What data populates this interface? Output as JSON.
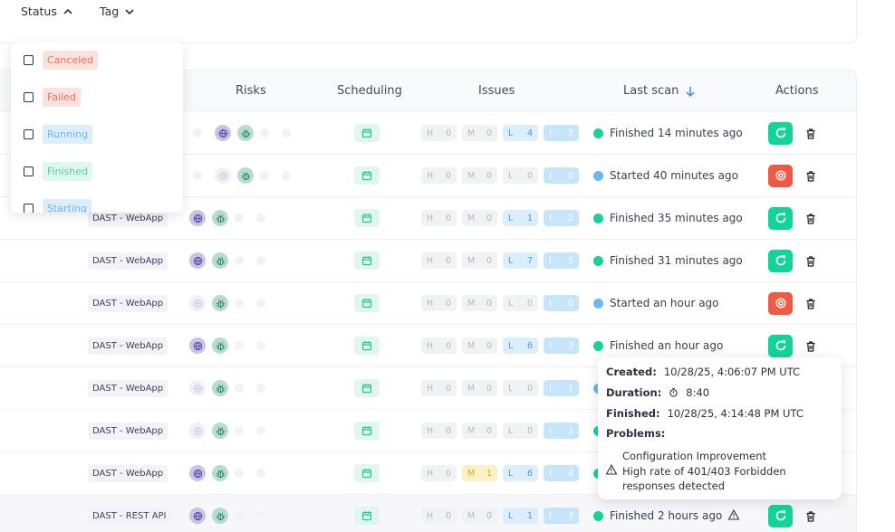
{
  "filters": {
    "status_label": "Status",
    "tag_label": "Tag"
  },
  "status_dropdown": {
    "options": [
      {
        "label": "Canceled"
      },
      {
        "label": "Failed"
      },
      {
        "label": "Running"
      },
      {
        "label": "Finished"
      },
      {
        "label": "Starting"
      }
    ]
  },
  "table": {
    "headers": {
      "risks": "Risks",
      "scheduling": "Scheduling",
      "issues": "Issues",
      "last_scan": "Last scan",
      "actions": "Actions"
    },
    "issue_letters": {
      "h": "H",
      "m": "M",
      "l": "L",
      "i": "I"
    },
    "rows": [
      {
        "type": "",
        "risks_active": true,
        "h": "0",
        "m": "0",
        "l": "4",
        "i": "2",
        "l_active": true,
        "m_active": false,
        "status_color": "green",
        "scan": "Finished 14 minutes ago",
        "action": "rescan",
        "warn": false
      },
      {
        "type": "",
        "risks_active": false,
        "h": "0",
        "m": "0",
        "l": "0",
        "i": "0",
        "l_active": false,
        "m_active": false,
        "status_color": "blue",
        "scan": "Started 40 minutes ago",
        "action": "stop",
        "warn": false
      },
      {
        "type": "DAST - WebApp",
        "risks_active": true,
        "h": "0",
        "m": "0",
        "l": "1",
        "i": "2",
        "l_active": true,
        "m_active": false,
        "status_color": "green",
        "scan": "Finished 35 minutes ago",
        "action": "rescan",
        "warn": false
      },
      {
        "type": "DAST - WebApp",
        "risks_active": true,
        "h": "0",
        "m": "0",
        "l": "7",
        "i": "5",
        "l_active": true,
        "m_active": false,
        "status_color": "green",
        "scan": "Finished 31 minutes ago",
        "action": "rescan",
        "warn": false
      },
      {
        "type": "DAST - WebApp",
        "risks_active": false,
        "h": "0",
        "m": "0",
        "l": "0",
        "i": "0",
        "l_active": false,
        "m_active": false,
        "status_color": "blue",
        "scan": "Started an hour ago",
        "action": "stop",
        "warn": false
      },
      {
        "type": "DAST - WebApp",
        "risks_active": true,
        "h": "0",
        "m": "0",
        "l": "6",
        "i": "3",
        "l_active": true,
        "m_active": false,
        "status_color": "green",
        "scan": "Finished an hour ago",
        "action": "rescan",
        "warn": false
      },
      {
        "type": "DAST - WebApp",
        "risks_active": false,
        "h": "0",
        "m": "0",
        "l": "0",
        "i": "1",
        "l_active": false,
        "m_active": false,
        "status_color": "blue",
        "scan": "",
        "action": "",
        "warn": false
      },
      {
        "type": "DAST - WebApp",
        "risks_active": false,
        "h": "0",
        "m": "0",
        "l": "0",
        "i": "1",
        "l_active": false,
        "m_active": false,
        "status_color": "green",
        "scan": "",
        "action": "",
        "warn": false
      },
      {
        "type": "DAST - WebApp",
        "risks_active": true,
        "h": "0",
        "m": "1",
        "l": "6",
        "i": "4",
        "l_active": true,
        "m_active": true,
        "status_color": "green",
        "scan": "",
        "action": "",
        "warn": false
      },
      {
        "type": "DAST - REST API",
        "risks_active": true,
        "h": "0",
        "m": "0",
        "l": "1",
        "i": "3",
        "l_active": true,
        "m_active": false,
        "status_color": "green",
        "scan": "Finished 2 hours ago",
        "action": "rescan",
        "warn": true
      }
    ]
  },
  "tooltip": {
    "created_label": "Created:",
    "created_value": "10/28/25, 4:06:07 PM UTC",
    "duration_label": "Duration:",
    "duration_value": "8:40",
    "finished_label": "Finished:",
    "finished_value": "10/28/25, 4:14:48 PM UTC",
    "problems_label": "Problems:",
    "problem_title": "Configuration Improvement",
    "problem_text": "High rate of 401/403 Forbidden responses detected"
  },
  "colors": {
    "green": "#19d19a",
    "blue": "#6ab7f2",
    "rescan": "#12d49a",
    "stop": "#ef5a45"
  }
}
